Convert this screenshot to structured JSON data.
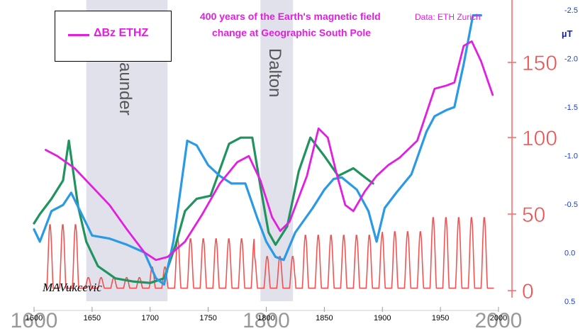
{
  "chart_data": {
    "type": "line",
    "title": "400 years of the Earth's magnetic field",
    "subtitle": "change at Geographic South Pole",
    "source": "Data:  ETH Zurich",
    "signature": "MAVukcevic",
    "legend": [
      {
        "label": "ΔBz ETHZ",
        "color": "#e21ee0"
      }
    ],
    "legend_placement": "top-left",
    "grid": false,
    "xlim": [
      1600,
      2000
    ],
    "x_ticks_small": [
      1600,
      1650,
      1700,
      1750,
      1800,
      1850,
      1900,
      1950,
      2000
    ],
    "x_ticks_large": [
      1600,
      1800,
      2000
    ],
    "bands": [
      {
        "label": "Maunder",
        "from": 1645,
        "to": 1715
      },
      {
        "label": "Dalton",
        "from": 1795,
        "to": 1823
      }
    ],
    "y_left_hidden": {
      "ylim": [
        0,
        190
      ]
    },
    "y_red": {
      "ticks": [
        0,
        50,
        100,
        150
      ],
      "color": "#f05050"
    },
    "y_right": {
      "unit": "µT",
      "ticks": [
        "-2.5",
        "-2.0",
        "-1.5",
        "-1.0",
        "-0.5",
        "0.0",
        "0.5"
      ]
    },
    "series": [
      {
        "name": "ΔBz ETHZ",
        "color": "#e21ee0",
        "x": [
          1610,
          1620,
          1635,
          1650,
          1665,
          1680,
          1695,
          1705,
          1715,
          1730,
          1745,
          1760,
          1775,
          1785,
          1795,
          1805,
          1812,
          1820,
          1835,
          1845,
          1853,
          1860,
          1868,
          1875,
          1885,
          1895,
          1905,
          1915,
          1930,
          1945,
          1955,
          1962,
          1970,
          1977,
          1985,
          1995
        ],
        "y": [
          92,
          88,
          80,
          68,
          56,
          40,
          25,
          20,
          22,
          32,
          50,
          70,
          84,
          88,
          72,
          48,
          39,
          45,
          75,
          106,
          100,
          78,
          56,
          52,
          65,
          75,
          82,
          87,
          98,
          132,
          134,
          136,
          160,
          163,
          150,
          128
        ]
      },
      {
        "name": "",
        "color": "#2a9ae6",
        "x": [
          1600,
          1605,
          1615,
          1625,
          1632,
          1650,
          1665,
          1680,
          1695,
          1705,
          1712,
          1720,
          1732,
          1740,
          1750,
          1760,
          1770,
          1782,
          1792,
          1800,
          1808,
          1815,
          1825,
          1840,
          1850,
          1858,
          1865,
          1878,
          1888,
          1895,
          1902,
          1912,
          1925,
          1938,
          1945,
          1955,
          1962,
          1970,
          1978,
          1985
        ],
        "y": [
          40,
          32,
          52,
          56,
          64,
          36,
          34,
          30,
          25,
          8,
          4,
          32,
          98,
          95,
          82,
          75,
          70,
          70,
          48,
          32,
          22,
          20,
          38,
          54,
          66,
          73,
          74,
          66,
          52,
          32,
          54,
          64,
          76,
          104,
          114,
          118,
          120,
          148,
          180,
          180
        ]
      },
      {
        "name": "",
        "color": "#21935e",
        "x": [
          1600,
          1605,
          1615,
          1625,
          1630,
          1638,
          1645,
          1655,
          1670,
          1685,
          1700,
          1712,
          1722,
          1730,
          1740,
          1752,
          1768,
          1778,
          1788,
          1795,
          1802,
          1808,
          1818,
          1828,
          1838,
          1850,
          1862,
          1875,
          1885,
          1892
        ],
        "y": [
          44,
          50,
          60,
          72,
          98,
          55,
          32,
          16,
          8,
          6,
          5,
          8,
          30,
          52,
          60,
          62,
          96,
          100,
          100,
          68,
          38,
          30,
          42,
          78,
          100,
          88,
          75,
          80,
          74,
          70
        ]
      }
    ]
  }
}
